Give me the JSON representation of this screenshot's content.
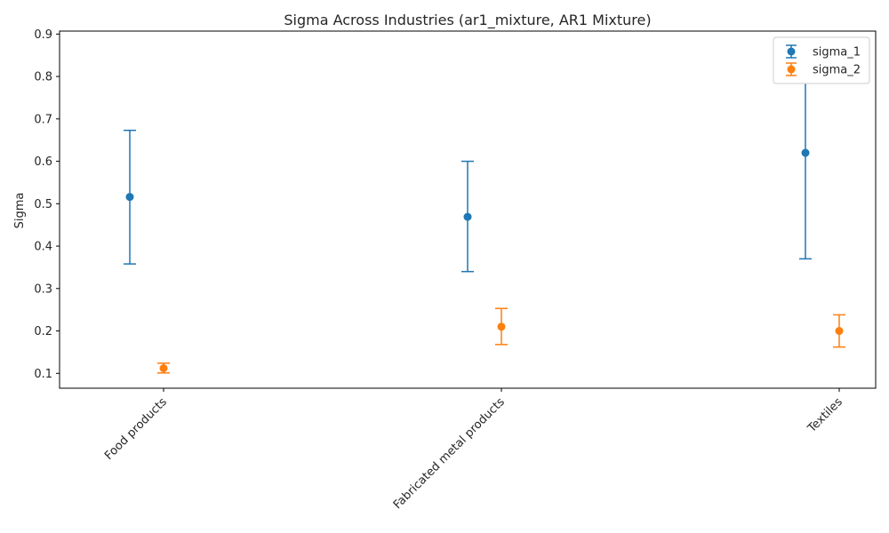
{
  "chart_data": {
    "type": "scatter",
    "title": "Sigma Across Industries (ar1_mixture, AR1 Mixture)",
    "xlabel": "",
    "ylabel": "Sigma",
    "categories": [
      "Food products",
      "Fabricated metal products",
      "Textiles"
    ],
    "ylim": [
      0.065,
      0.907
    ],
    "yticks": [
      "0.1",
      "0.2",
      "0.3",
      "0.4",
      "0.5",
      "0.6",
      "0.7",
      "0.8",
      "0.9"
    ],
    "grid": false,
    "legend_position": "top-right",
    "series": [
      {
        "name": "sigma_1",
        "color": "#1f77b4",
        "values": [
          0.516,
          0.469,
          0.62
        ],
        "lower": [
          0.358,
          0.34,
          0.37
        ],
        "upper": [
          0.673,
          0.6,
          0.87
        ]
      },
      {
        "name": "sigma_2",
        "color": "#ff7f0e",
        "values": [
          0.112,
          0.21,
          0.2
        ],
        "lower": [
          0.101,
          0.168,
          0.162
        ],
        "upper": [
          0.124,
          0.253,
          0.238
        ]
      }
    ]
  }
}
